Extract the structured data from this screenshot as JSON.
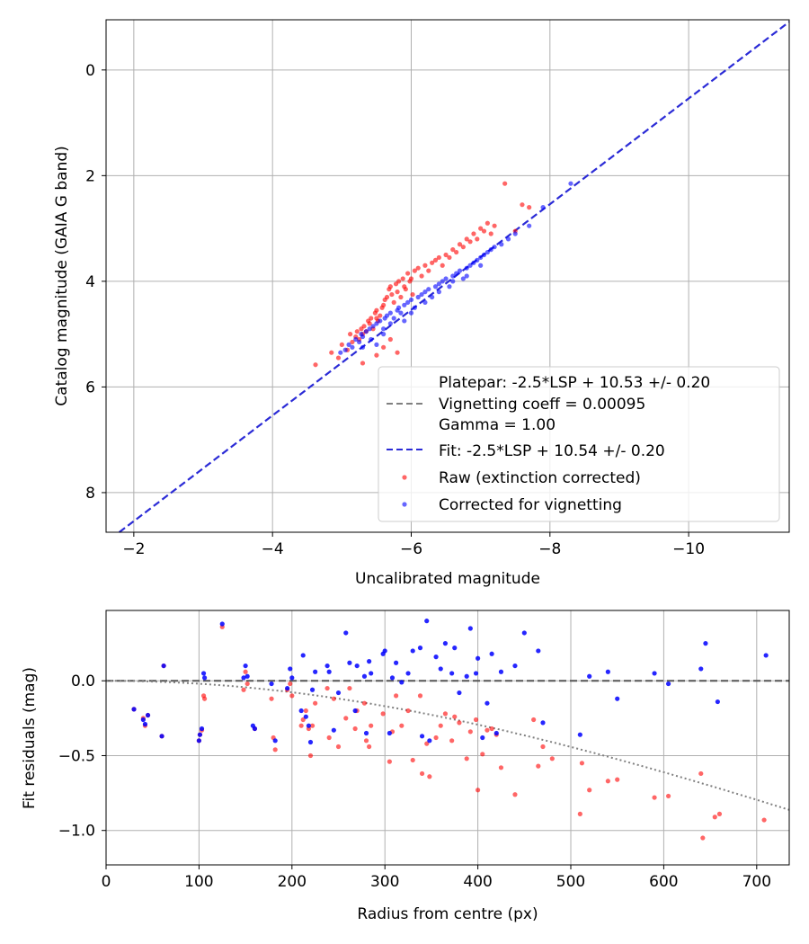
{
  "chart_data": [
    {
      "type": "scatter",
      "xlabel": "Uncalibrated magnitude",
      "ylabel": "Catalog magnitude (GAIA G band)",
      "xlim": [
        -1.6,
        -11.45
      ],
      "ylim": [
        -0.95,
        8.75
      ],
      "xticks": [
        -2,
        -4,
        -6,
        -8,
        -10
      ],
      "xtick_labels": [
        "−2",
        "−4",
        "−6",
        "−8",
        "−10"
      ],
      "yticks": [
        0,
        2,
        4,
        6,
        8
      ],
      "ytick_labels": [
        "0",
        "2",
        "4",
        "6",
        "8"
      ],
      "grid": true,
      "legend": {
        "position": "lower-right",
        "entries": [
          {
            "label": "Platepar: -2.5*LSP + 10.53 +/- 0.20",
            "style": "none"
          },
          {
            "label": "Vignetting coeff = 0.00095",
            "style": "dashed",
            "color": "#808080"
          },
          {
            "label": "Gamma = 1.00",
            "style": "none"
          },
          {
            "label": "Fit: -2.5*LSP + 10.54 +/- 0.20",
            "style": "dashed",
            "color": "#2b2bd6"
          },
          {
            "label": "Raw (extinction corrected)",
            "style": "marker",
            "color": "#ff0000"
          },
          {
            "label": "Corrected for vignetting",
            "style": "marker",
            "color": "#0000ff"
          }
        ]
      },
      "fit_line": {
        "slope": 1.0,
        "intercept": 10.54,
        "color": "#2b2bd6"
      },
      "series": [
        {
          "name": "Raw (extinction corrected)",
          "color": "#ff0000",
          "x": [
            -4.62,
            -4.85,
            -4.95,
            -5.0,
            -5.08,
            -5.12,
            -5.15,
            -5.2,
            -5.22,
            -5.25,
            -5.28,
            -5.3,
            -5.32,
            -5.35,
            -5.38,
            -5.4,
            -5.42,
            -5.45,
            -5.48,
            -5.5,
            -5.5,
            -5.52,
            -5.55,
            -5.58,
            -5.6,
            -5.62,
            -5.65,
            -5.68,
            -5.7,
            -5.72,
            -5.75,
            -5.78,
            -5.8,
            -5.82,
            -5.85,
            -5.88,
            -5.9,
            -5.92,
            -5.95,
            -5.98,
            -6.0,
            -6.02,
            -6.05,
            -6.1,
            -6.15,
            -6.2,
            -6.25,
            -6.3,
            -6.35,
            -6.4,
            -6.45,
            -6.5,
            -6.55,
            -6.6,
            -6.65,
            -6.7,
            -6.75,
            -6.8,
            -6.85,
            -6.9,
            -6.95,
            -7.0,
            -7.05,
            -7.1,
            -7.15,
            -7.2,
            -7.35,
            -7.6,
            -7.5,
            -7.7,
            -5.6,
            -5.7,
            -5.8,
            -5.5,
            -5.3
          ],
          "y": [
            5.58,
            5.35,
            5.45,
            5.2,
            5.3,
            5.0,
            5.15,
            5.05,
            4.95,
            5.1,
            4.9,
            5.0,
            4.85,
            4.95,
            4.75,
            4.8,
            4.7,
            4.9,
            4.6,
            4.55,
            4.7,
            4.75,
            4.65,
            4.5,
            4.45,
            4.35,
            4.3,
            4.15,
            4.1,
            4.25,
            4.4,
            4.05,
            4.2,
            4.0,
            4.3,
            3.95,
            4.1,
            4.15,
            3.85,
            4.0,
            3.95,
            4.25,
            3.8,
            3.75,
            3.9,
            3.7,
            3.8,
            3.65,
            3.6,
            3.55,
            3.7,
            3.5,
            3.55,
            3.4,
            3.45,
            3.3,
            3.35,
            3.2,
            3.25,
            3.1,
            3.2,
            3.0,
            3.05,
            2.9,
            3.1,
            2.95,
            2.15,
            2.55,
            3.05,
            2.6,
            5.25,
            5.1,
            5.35,
            5.4,
            5.55
          ]
        },
        {
          "name": "Corrected for vignetting",
          "color": "#0000ff",
          "x": [
            -4.98,
            -5.05,
            -5.1,
            -5.15,
            -5.2,
            -5.25,
            -5.28,
            -5.3,
            -5.35,
            -5.4,
            -5.42,
            -5.45,
            -5.5,
            -5.55,
            -5.6,
            -5.62,
            -5.65,
            -5.7,
            -5.75,
            -5.8,
            -5.82,
            -5.85,
            -5.9,
            -5.95,
            -6.0,
            -6.05,
            -6.1,
            -6.15,
            -6.2,
            -6.25,
            -6.3,
            -6.35,
            -6.4,
            -6.45,
            -6.5,
            -6.55,
            -6.6,
            -6.65,
            -6.7,
            -6.75,
            -6.8,
            -6.85,
            -6.9,
            -6.95,
            -7.0,
            -7.05,
            -7.1,
            -7.15,
            -7.2,
            -7.3,
            -7.4,
            -7.5,
            -7.7,
            -7.9,
            -8.3,
            -5.5,
            -5.6,
            -5.7,
            -5.3,
            -6.0,
            -6.2,
            -6.4,
            -6.6,
            -6.8,
            -7.0,
            -5.9
          ],
          "y": [
            5.35,
            5.3,
            5.2,
            5.25,
            5.1,
            5.15,
            5.0,
            5.05,
            4.95,
            4.9,
            5.1,
            4.85,
            4.8,
            4.75,
            4.9,
            4.7,
            4.65,
            4.6,
            4.7,
            4.55,
            4.5,
            4.6,
            4.45,
            4.4,
            4.35,
            4.5,
            4.3,
            4.25,
            4.2,
            4.15,
            4.3,
            4.1,
            4.05,
            4.0,
            3.95,
            4.1,
            3.9,
            3.85,
            3.8,
            3.95,
            3.75,
            3.7,
            3.65,
            3.6,
            3.55,
            3.5,
            3.45,
            3.4,
            3.35,
            3.3,
            3.2,
            3.1,
            2.95,
            2.6,
            2.15,
            5.2,
            5.0,
            4.8,
            5.25,
            4.6,
            4.4,
            4.2,
            4.0,
            3.9,
            3.7,
            4.75
          ]
        }
      ]
    },
    {
      "type": "scatter",
      "xlabel": "Radius from centre (px)",
      "ylabel": "Fit residuals (mag)",
      "xlim": [
        0,
        735
      ],
      "ylim": [
        -1.23,
        0.47
      ],
      "xticks": [
        0,
        100,
        200,
        300,
        400,
        500,
        600,
        700
      ],
      "xtick_labels": [
        "0",
        "100",
        "200",
        "300",
        "400",
        "500",
        "600",
        "700"
      ],
      "yticks": [
        0.0,
        -0.5,
        -1.0
      ],
      "ytick_labels": [
        "0.0",
        "−0.5",
        "−1.0"
      ],
      "grid": true,
      "zero_line": {
        "y": 0,
        "style": "dashed",
        "color": "#555555"
      },
      "vignetting_curve": {
        "coeff": 0.00095,
        "style": "dotted",
        "color": "#808080"
      },
      "series": [
        {
          "name": "Raw (extinction corrected)",
          "color": "#ff0000",
          "r": [
            30,
            40,
            42,
            45,
            60,
            62,
            100,
            101,
            103,
            105,
            106,
            125,
            148,
            150,
            152,
            160,
            178,
            180,
            182,
            195,
            198,
            200,
            210,
            212,
            215,
            218,
            220,
            222,
            225,
            238,
            240,
            245,
            250,
            258,
            262,
            268,
            270,
            278,
            280,
            283,
            285,
            298,
            305,
            308,
            312,
            318,
            325,
            330,
            338,
            340,
            345,
            348,
            355,
            360,
            365,
            372,
            375,
            380,
            388,
            392,
            398,
            400,
            405,
            410,
            415,
            420,
            425,
            440,
            460,
            465,
            470,
            480,
            510,
            512,
            520,
            540,
            550,
            590,
            605,
            640,
            642,
            655,
            660,
            708
          ],
          "v": [
            -0.19,
            -0.25,
            -0.3,
            -0.23,
            -0.37,
            0.1,
            -0.4,
            -0.36,
            -0.33,
            -0.1,
            -0.12,
            0.36,
            -0.06,
            0.06,
            -0.02,
            -0.32,
            -0.12,
            -0.38,
            -0.46,
            -0.06,
            -0.02,
            -0.1,
            -0.3,
            -0.26,
            -0.2,
            -0.32,
            -0.5,
            -0.3,
            -0.15,
            -0.05,
            -0.38,
            -0.12,
            -0.44,
            -0.25,
            -0.05,
            -0.32,
            -0.2,
            -0.15,
            -0.4,
            -0.44,
            -0.3,
            -0.22,
            -0.54,
            -0.34,
            -0.1,
            -0.3,
            -0.2,
            -0.53,
            -0.1,
            -0.62,
            -0.42,
            -0.64,
            -0.38,
            -0.3,
            -0.22,
            -0.4,
            -0.24,
            -0.28,
            -0.52,
            -0.34,
            -0.26,
            -0.73,
            -0.49,
            -0.33,
            -0.32,
            -0.36,
            -0.58,
            -0.76,
            -0.26,
            -0.57,
            -0.44,
            -0.52,
            -0.89,
            -0.55,
            -0.73,
            -0.67,
            -0.66,
            -0.78,
            -0.77,
            -0.62,
            -1.05,
            -0.91,
            -0.89,
            -0.93
          ]
        },
        {
          "name": "Corrected for vignetting",
          "color": "#0000ff",
          "r": [
            30,
            40,
            42,
            45,
            60,
            62,
            100,
            101,
            103,
            105,
            106,
            125,
            148,
            150,
            152,
            158,
            160,
            178,
            182,
            195,
            198,
            200,
            210,
            212,
            215,
            218,
            220,
            222,
            225,
            238,
            240,
            245,
            250,
            258,
            262,
            268,
            270,
            278,
            280,
            283,
            285,
            298,
            300,
            305,
            308,
            312,
            318,
            325,
            330,
            338,
            340,
            345,
            348,
            355,
            360,
            365,
            372,
            375,
            380,
            388,
            392,
            398,
            400,
            405,
            410,
            415,
            420,
            425,
            440,
            450,
            465,
            470,
            510,
            520,
            540,
            550,
            590,
            605,
            640,
            645,
            658,
            710
          ],
          "v": [
            -0.19,
            -0.26,
            -0.29,
            -0.23,
            -0.37,
            0.1,
            -0.4,
            -0.36,
            -0.32,
            0.05,
            0.02,
            0.38,
            0.02,
            0.1,
            0.03,
            -0.3,
            -0.32,
            -0.02,
            -0.4,
            -0.05,
            0.08,
            0.02,
            -0.2,
            0.17,
            -0.24,
            -0.3,
            -0.41,
            -0.06,
            0.06,
            0.1,
            0.06,
            -0.33,
            -0.08,
            0.32,
            0.12,
            -0.2,
            0.1,
            0.03,
            -0.35,
            0.13,
            0.05,
            0.18,
            0.2,
            -0.35,
            0.02,
            0.12,
            -0.01,
            0.05,
            0.2,
            0.22,
            -0.37,
            0.4,
            -0.4,
            0.16,
            0.08,
            0.25,
            0.05,
            0.22,
            -0.08,
            0.03,
            0.35,
            0.05,
            0.15,
            -0.38,
            -0.15,
            0.18,
            -0.35,
            0.06,
            0.1,
            0.32,
            0.2,
            -0.28,
            -0.36,
            0.03,
            0.06,
            -0.12,
            0.05,
            -0.02,
            0.08,
            0.25,
            -0.14,
            0.17
          ]
        }
      ]
    }
  ]
}
